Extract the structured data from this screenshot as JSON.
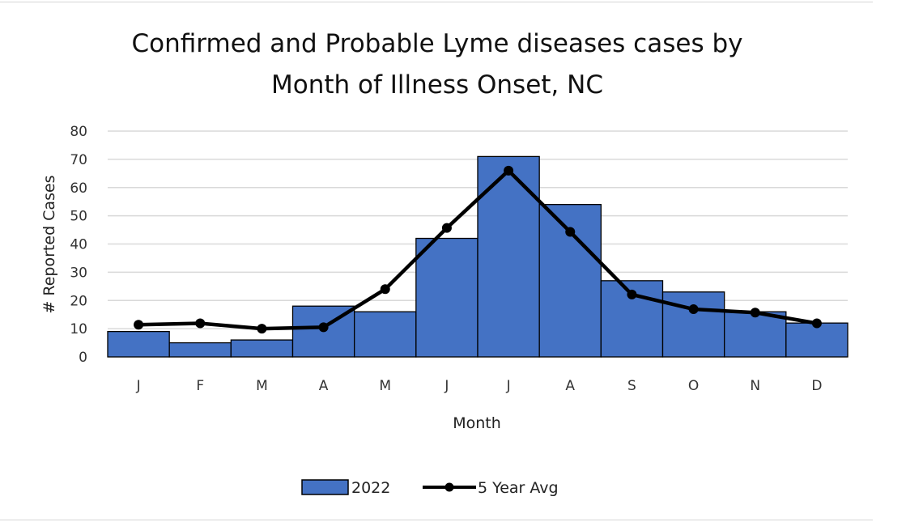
{
  "chart_data": {
    "type": "bar+line",
    "title": [
      "Confirmed and Probable Lyme diseases cases by",
      "Month of Illness Onset, NC"
    ],
    "xlabel": "Month",
    "ylabel": "# Reported Cases",
    "categories": [
      "J",
      "F",
      "M",
      "A",
      "M",
      "J",
      "J",
      "A",
      "S",
      "O",
      "N",
      "D"
    ],
    "ylim": [
      0,
      80
    ],
    "yticks": [
      0,
      10,
      20,
      30,
      40,
      50,
      60,
      70,
      80
    ],
    "grid": true,
    "legend_position": "bottom",
    "series": [
      {
        "name": "2022",
        "type": "bar",
        "color": "#4472C4",
        "values": [
          9,
          5,
          6,
          18,
          16,
          42,
          71,
          54,
          27,
          23,
          16,
          12
        ]
      },
      {
        "name": "5 Year Avg",
        "type": "line",
        "color": "#000000",
        "values": [
          11.4,
          11.9,
          10,
          10.5,
          24,
          45.7,
          66,
          44.3,
          22.1,
          16.9,
          15.7,
          11.9
        ]
      }
    ]
  }
}
